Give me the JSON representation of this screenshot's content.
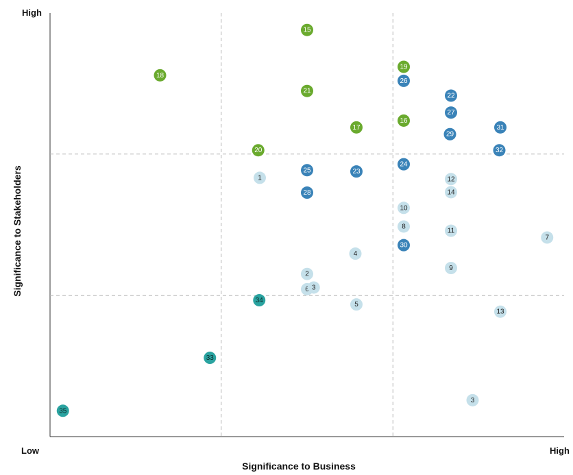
{
  "chart_data": {
    "type": "scatter",
    "title": "",
    "xlabel": "Significance to Business",
    "ylabel": "Significance to Stakeholders",
    "x_low_label": "Low",
    "x_high_label": "High",
    "y_high_label": "High",
    "xlim": [
      0,
      100
    ],
    "ylim": [
      0,
      100
    ],
    "dividers_x": [
      33.3,
      66.7
    ],
    "dividers_y": [
      33.3,
      66.7
    ],
    "grid": false,
    "legend": "none",
    "colors": {
      "green": "#6aaa2e",
      "blue": "#3a83b8",
      "light": "#c5e0ea",
      "teal": "#2aa3a0"
    },
    "points": [
      {
        "label": "15",
        "x": 50.0,
        "y": 96.0,
        "group": "green"
      },
      {
        "label": "18",
        "x": 21.4,
        "y": 85.3,
        "group": "green"
      },
      {
        "label": "19",
        "x": 68.8,
        "y": 87.3,
        "group": "green"
      },
      {
        "label": "21",
        "x": 50.0,
        "y": 81.6,
        "group": "green"
      },
      {
        "label": "16",
        "x": 68.8,
        "y": 74.6,
        "group": "green"
      },
      {
        "label": "17",
        "x": 59.6,
        "y": 73.0,
        "group": "green"
      },
      {
        "label": "20",
        "x": 40.5,
        "y": 67.6,
        "group": "green"
      },
      {
        "label": "26",
        "x": 68.8,
        "y": 84.0,
        "group": "blue"
      },
      {
        "label": "22",
        "x": 78.0,
        "y": 80.5,
        "group": "blue"
      },
      {
        "label": "27",
        "x": 78.0,
        "y": 76.5,
        "group": "blue"
      },
      {
        "label": "31",
        "x": 87.6,
        "y": 73.0,
        "group": "blue"
      },
      {
        "label": "29",
        "x": 77.8,
        "y": 71.4,
        "group": "blue"
      },
      {
        "label": "32",
        "x": 87.4,
        "y": 67.6,
        "group": "blue"
      },
      {
        "label": "24",
        "x": 68.8,
        "y": 64.3,
        "group": "blue"
      },
      {
        "label": "25",
        "x": 50.0,
        "y": 62.9,
        "group": "blue"
      },
      {
        "label": "23",
        "x": 59.6,
        "y": 62.6,
        "group": "blue"
      },
      {
        "label": "28",
        "x": 50.0,
        "y": 57.6,
        "group": "blue"
      },
      {
        "label": "30",
        "x": 68.8,
        "y": 45.2,
        "group": "blue"
      },
      {
        "label": "1",
        "x": 40.8,
        "y": 61.1,
        "group": "light"
      },
      {
        "label": "12",
        "x": 78.0,
        "y": 60.8,
        "group": "light"
      },
      {
        "label": "14",
        "x": 78.0,
        "y": 57.7,
        "group": "light"
      },
      {
        "label": "10",
        "x": 68.8,
        "y": 54.0,
        "group": "light"
      },
      {
        "label": "8",
        "x": 68.8,
        "y": 49.6,
        "group": "light"
      },
      {
        "label": "11",
        "x": 78.0,
        "y": 48.6,
        "group": "light"
      },
      {
        "label": "7",
        "x": 96.7,
        "y": 47.0,
        "group": "light"
      },
      {
        "label": "4",
        "x": 59.4,
        "y": 43.2,
        "group": "light"
      },
      {
        "label": "9",
        "x": 78.0,
        "y": 39.8,
        "group": "light"
      },
      {
        "label": "2",
        "x": 50.0,
        "y": 38.4,
        "group": "light"
      },
      {
        "label": "6",
        "x": 50.0,
        "y": 34.8,
        "group": "light"
      },
      {
        "label": "3",
        "x": 51.3,
        "y": 35.2,
        "group": "light"
      },
      {
        "label": "5",
        "x": 59.6,
        "y": 31.2,
        "group": "light"
      },
      {
        "label": "13",
        "x": 87.6,
        "y": 29.5,
        "group": "light"
      },
      {
        "label": "3",
        "x": 82.2,
        "y": 8.6,
        "group": "light"
      },
      {
        "label": "34",
        "x": 40.7,
        "y": 32.2,
        "group": "teal"
      },
      {
        "label": "33",
        "x": 31.1,
        "y": 18.6,
        "group": "teal"
      },
      {
        "label": "35",
        "x": 2.5,
        "y": 6.1,
        "group": "teal"
      }
    ]
  }
}
